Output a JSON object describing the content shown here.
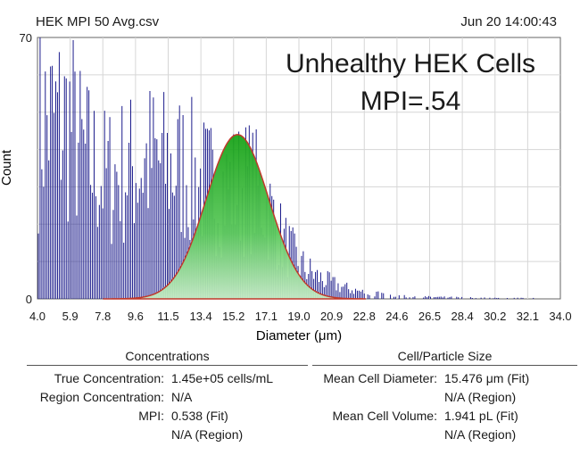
{
  "header": {
    "file_name": "HEK MPI 50 Avg.csv",
    "timestamp": "Jun 20 14:00:43"
  },
  "chart_data": {
    "type": "bar",
    "title": "HEK MPI 50 Avg.csv",
    "xlabel": "Diameter (μm)",
    "ylabel": "Count",
    "xlim": [
      4.0,
      34.0
    ],
    "ylim": [
      0,
      70
    ],
    "x_ticks": [
      "4.0",
      "5.9",
      "7.8",
      "9.6",
      "11.5",
      "13.4",
      "15.2",
      "17.1",
      "19.0",
      "20.9",
      "22.8",
      "24.6",
      "26.5",
      "28.4",
      "30.2",
      "32.1",
      "34.0"
    ],
    "y_ticks": [
      "70",
      "0"
    ],
    "grid": true,
    "annotations": [
      "Unhealthy HEK Cells",
      "MPI=.54"
    ],
    "histogram": {
      "name": "Counts",
      "color": "#1c1c8c",
      "bin_width": 0.1,
      "envelope": [
        [
          4.0,
          70
        ],
        [
          5.0,
          70
        ],
        [
          5.9,
          70
        ],
        [
          6.5,
          58
        ],
        [
          7.3,
          52
        ],
        [
          7.8,
          48
        ],
        [
          8.6,
          50
        ],
        [
          9.6,
          52
        ],
        [
          10.6,
          55
        ],
        [
          11.5,
          52
        ],
        [
          12.4,
          52
        ],
        [
          13.4,
          46
        ],
        [
          14.3,
          44
        ],
        [
          15.2,
          44
        ],
        [
          16.2,
          45
        ],
        [
          17.1,
          38
        ],
        [
          18.0,
          24
        ],
        [
          19.0,
          14
        ],
        [
          20.0,
          9
        ],
        [
          20.9,
          6
        ],
        [
          21.8,
          4
        ],
        [
          22.8,
          2.5
        ],
        [
          24.6,
          1.2
        ],
        [
          26.5,
          0.7
        ],
        [
          28.4,
          0.5
        ],
        [
          30.2,
          0.3
        ],
        [
          32.1,
          0.3
        ],
        [
          34.0,
          0
        ]
      ]
    },
    "fit": {
      "name": "Gaussian Fit",
      "fill_color": "#2fae2f",
      "line_color": "#c0392b",
      "mean": 15.476,
      "sigma": 1.8,
      "peak": 44,
      "range": [
        7.8,
        22.8
      ]
    }
  },
  "concentrations": {
    "title": "Concentrations",
    "rows": [
      {
        "label": "True Concentration:",
        "value": "1.45e+05 cells/mL"
      },
      {
        "label": "Region Concentration:",
        "value": "N/A"
      },
      {
        "label": "MPI:",
        "value": "0.538 (Fit)"
      },
      {
        "label": "",
        "value": "N/A (Region)"
      }
    ]
  },
  "cell_size": {
    "title": "Cell/Particle Size",
    "rows": [
      {
        "label": "Mean Cell Diameter:",
        "value": "15.476 μm (Fit)"
      },
      {
        "label": "",
        "value": "N/A (Region)"
      },
      {
        "label": "Mean Cell Volume:",
        "value": "1.941 pL (Fit)"
      },
      {
        "label": "",
        "value": "N/A (Region)"
      }
    ]
  }
}
